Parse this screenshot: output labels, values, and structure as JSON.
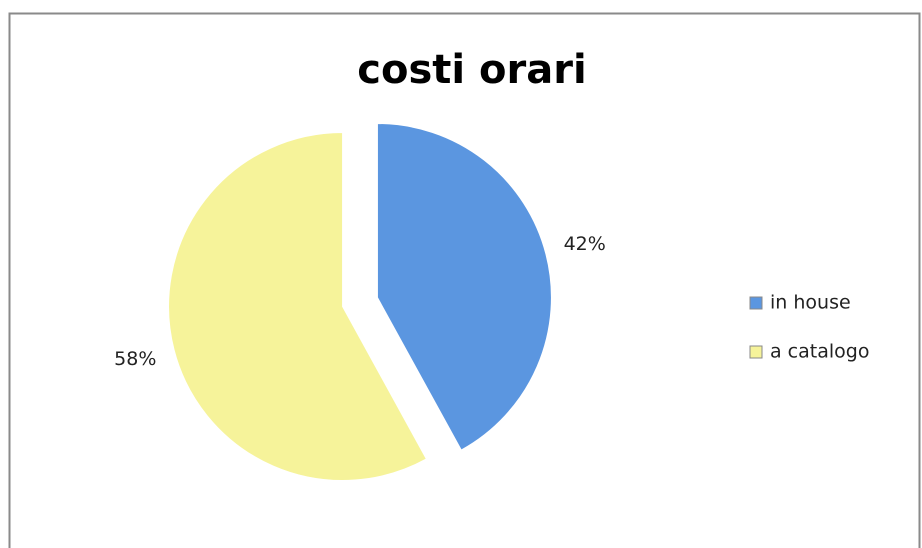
{
  "chart_data": {
    "type": "pie",
    "title": "costi orari",
    "categories": [
      "in house",
      "a catalogo"
    ],
    "values": [
      42,
      58
    ],
    "value_labels": [
      "42%",
      "58%"
    ],
    "colors": [
      "#5b96e0",
      "#f6f39a"
    ],
    "legend": "right"
  }
}
